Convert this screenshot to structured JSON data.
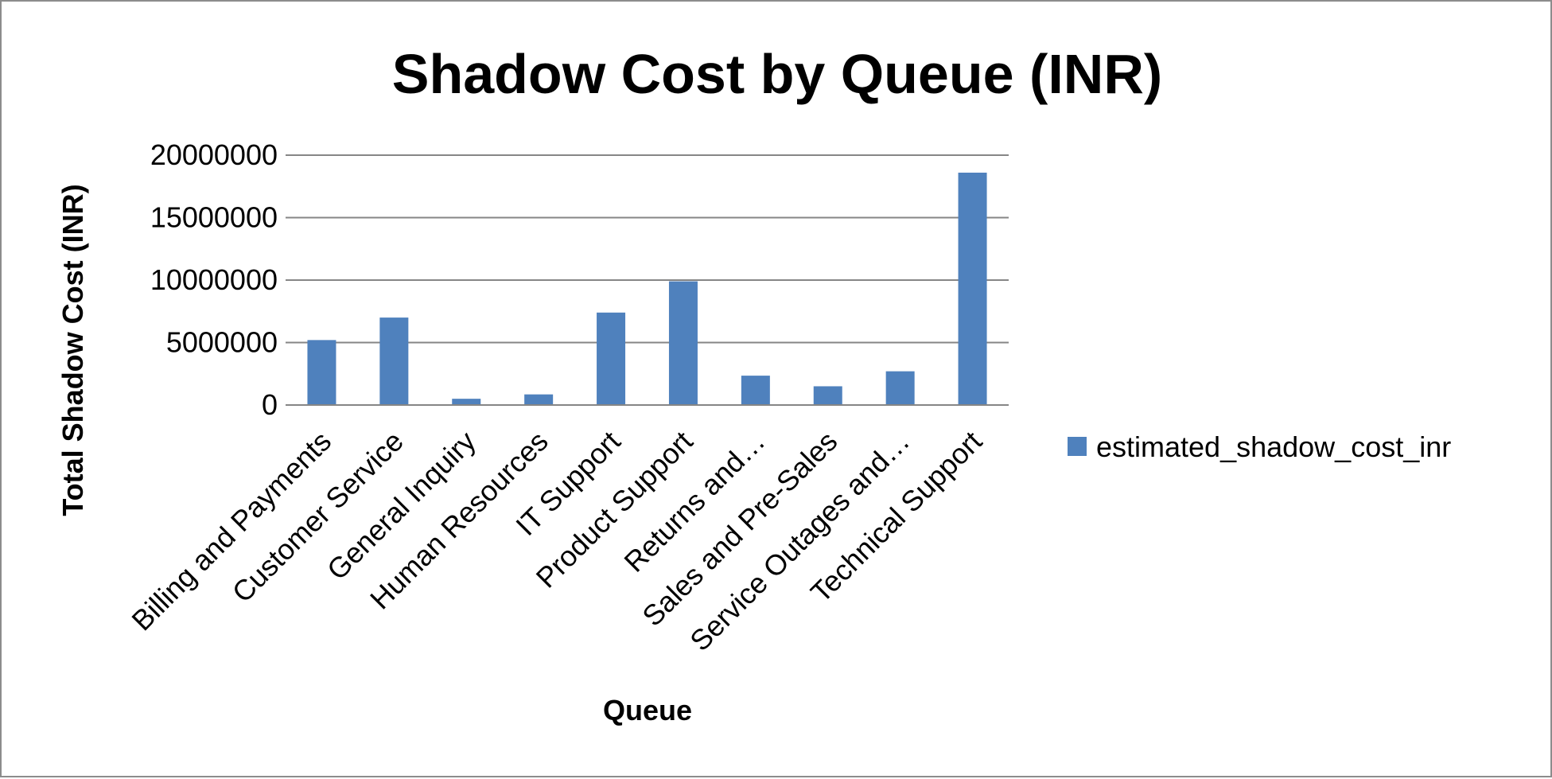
{
  "chart_data": {
    "type": "bar",
    "title": "Shadow Cost by Queue (INR)",
    "xlabel": "Queue",
    "ylabel": "Total Shadow Cost (INR)",
    "ylim": [
      0,
      20000000
    ],
    "yticks": [
      0,
      5000000,
      10000000,
      15000000,
      20000000
    ],
    "ytick_labels": [
      "0",
      "5000000",
      "10000000",
      "15000000",
      "20000000"
    ],
    "grid": true,
    "legend_position": "right",
    "categories": [
      "Billing and Payments",
      "Customer Service",
      "General Inquiry",
      "Human Resources",
      "IT Support",
      "Product Support",
      "Returns and…",
      "Sales and Pre-Sales",
      "Service Outages and…",
      "Technical Support"
    ],
    "series": [
      {
        "name": "estimated_shadow_cost_inr",
        "color": "#4f81bd",
        "values": [
          5200000,
          7000000,
          500000,
          850000,
          7400000,
          9900000,
          2350000,
          1500000,
          2700000,
          18600000
        ]
      }
    ]
  }
}
